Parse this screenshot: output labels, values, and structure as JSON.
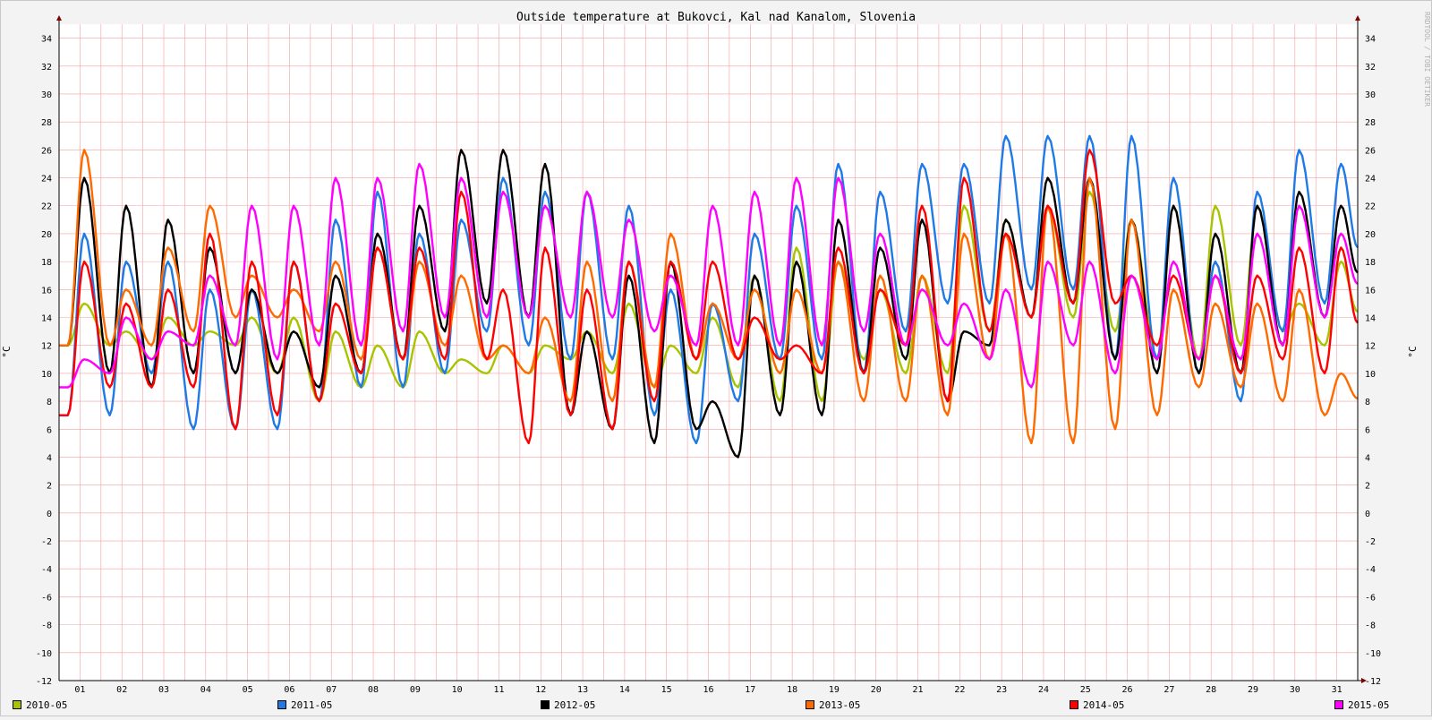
{
  "chart_data": {
    "type": "line",
    "title": "Outside temperature at Bukovci, Kal nad Kanalom, Slovenia",
    "ylabel": "°C",
    "watermark": "RRDTOOL / TOBI OETIKER",
    "ylim": [
      -12,
      35
    ],
    "yticks": [
      -12,
      -10,
      -8,
      -6,
      -4,
      -2,
      0,
      2,
      4,
      6,
      8,
      10,
      12,
      14,
      16,
      18,
      20,
      22,
      24,
      26,
      28,
      30,
      32,
      34
    ],
    "xlim": [
      0,
      31
    ],
    "xlabel": "",
    "xtick_labels": [
      "01",
      "02",
      "03",
      "04",
      "05",
      "06",
      "07",
      "08",
      "09",
      "10",
      "11",
      "12",
      "13",
      "14",
      "15",
      "16",
      "17",
      "18",
      "19",
      "20",
      "21",
      "22",
      "23",
      "24",
      "25",
      "26",
      "27",
      "28",
      "29",
      "30",
      "31"
    ],
    "grid": true,
    "legend_position": "bottom",
    "x_unit": "day of month",
    "series": [
      {
        "name": "2010-05",
        "color": "#a8c400",
        "min": [
          12,
          12,
          11,
          12,
          12,
          10,
          8,
          9,
          9,
          10,
          10,
          10,
          11,
          10,
          9,
          10,
          9,
          8,
          8,
          11,
          10,
          10,
          13,
          14,
          14,
          13,
          11,
          11,
          12,
          13,
          12
        ],
        "max": [
          15,
          13,
          14,
          13,
          14,
          14,
          13,
          12,
          13,
          11,
          12,
          12,
          13,
          15,
          12,
          14,
          17,
          19,
          18,
          16,
          17,
          22,
          21,
          22,
          23,
          21,
          22,
          22,
          22,
          15,
          18
        ]
      },
      {
        "name": "2011-05",
        "color": "#1e7ae6",
        "min": [
          7,
          7,
          10,
          6,
          6,
          6,
          8,
          9,
          9,
          10,
          13,
          12,
          11,
          11,
          7,
          5,
          8,
          11,
          11,
          10,
          13,
          15,
          15,
          16,
          16,
          11,
          11,
          10,
          8,
          13,
          15
        ],
        "max": [
          20,
          18,
          18,
          16,
          16,
          18,
          21,
          23,
          20,
          21,
          24,
          23,
          23,
          22,
          16,
          15,
          20,
          22,
          25,
          23,
          25,
          25,
          27,
          27,
          27,
          27,
          24,
          18,
          23,
          26,
          25
        ]
      },
      {
        "name": "2012-05",
        "color": "#000000",
        "min": [
          12,
          10,
          9,
          10,
          10,
          10,
          9,
          10,
          11,
          13,
          15,
          14,
          7,
          6,
          5,
          6,
          4,
          7,
          7,
          10,
          11,
          8,
          12,
          14,
          15,
          11,
          10,
          10,
          10,
          12,
          14
        ],
        "max": [
          24,
          22,
          21,
          19,
          16,
          13,
          17,
          20,
          22,
          26,
          26,
          25,
          13,
          17,
          18,
          8,
          17,
          18,
          21,
          19,
          21,
          13,
          21,
          24,
          24,
          21,
          22,
          20,
          22,
          23,
          22
        ]
      },
      {
        "name": "2013-05",
        "color": "#ff6a00",
        "min": [
          12,
          12,
          12,
          13,
          14,
          14,
          13,
          11,
          11,
          12,
          11,
          10,
          8,
          8,
          9,
          11,
          11,
          10,
          10,
          8,
          8,
          7,
          11,
          5,
          5,
          6,
          7,
          9,
          9,
          8,
          7
        ],
        "max": [
          26,
          16,
          19,
          22,
          17,
          16,
          18,
          19,
          18,
          17,
          12,
          14,
          18,
          18,
          20,
          15,
          16,
          16,
          18,
          17,
          17,
          20,
          20,
          22,
          24,
          21,
          16,
          15,
          15,
          16,
          10
        ]
      },
      {
        "name": "2014-05",
        "color": "#ff0000",
        "min": [
          7,
          9,
          9,
          9,
          6,
          7,
          8,
          10,
          11,
          11,
          11,
          5,
          7,
          6,
          8,
          11,
          11,
          11,
          10,
          10,
          12,
          8,
          13,
          14,
          15,
          15,
          12,
          11,
          10,
          11,
          10
        ],
        "max": [
          18,
          15,
          16,
          20,
          18,
          18,
          15,
          19,
          19,
          23,
          16,
          19,
          16,
          18,
          18,
          18,
          14,
          12,
          19,
          16,
          22,
          24,
          20,
          22,
          26,
          17,
          17,
          17,
          17,
          19,
          19
        ]
      },
      {
        "name": "2015-05",
        "color": "#ff00ff",
        "min": [
          9,
          10,
          11,
          12,
          12,
          11,
          12,
          12,
          13,
          14,
          14,
          14,
          14,
          14,
          13,
          12,
          12,
          12,
          12,
          13,
          12,
          12,
          11,
          9,
          12,
          10,
          11,
          11,
          11,
          12,
          14
        ],
        "max": [
          11,
          14,
          13,
          17,
          22,
          22,
          24,
          24,
          25,
          24,
          23,
          22,
          23,
          21,
          17,
          22,
          23,
          24,
          24,
          20,
          16,
          15,
          16,
          18,
          18,
          17,
          18,
          17,
          20,
          22,
          20
        ]
      }
    ]
  }
}
